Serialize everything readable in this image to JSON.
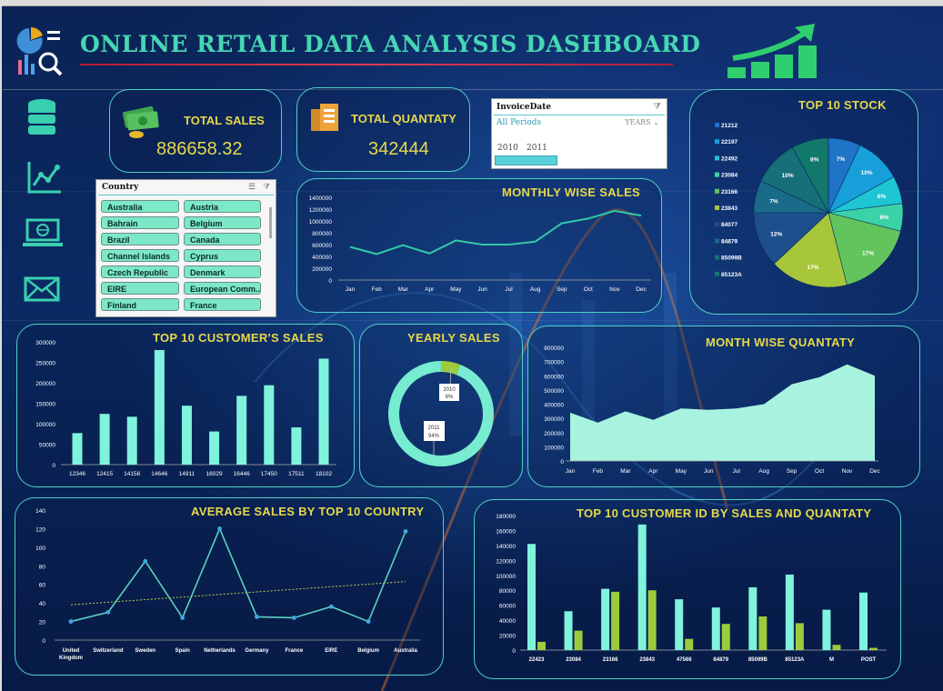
{
  "title": "ONLINE RETAIL DATA ANALYSIS DASHBOARD",
  "kpis": {
    "sales_label": "TOTAL SALES",
    "sales_value": "886658.32",
    "quantity_label": "TOTAL QUANTATY",
    "quantity_value": "342444"
  },
  "invoice_slicer": {
    "title": "InvoiceDate",
    "period": "All Periods",
    "level": "YEARS",
    "years": [
      "2010",
      "2011"
    ]
  },
  "country_slicer": {
    "title": "Country",
    "items": [
      "Australia",
      "Austria",
      "Bahrain",
      "Belgium",
      "Brazil",
      "Canada",
      "Channel Islands",
      "Cyprus",
      "Czech Republic",
      "Denmark",
      "EIRE",
      "European Comm...",
      "Finland",
      "France"
    ]
  },
  "side_icons": [
    "database-icon",
    "line-chart-icon",
    "laptop-icon",
    "mail-icon"
  ],
  "colors": {
    "accent": "#4fd1c5",
    "title": "#e6d84a",
    "series": "#7ff3dc",
    "series2": "#9ccc3c"
  },
  "chart_data": [
    {
      "id": "monthly",
      "type": "line",
      "title": "MONTHLY WISE SALES",
      "categories": [
        "Jan",
        "Feb",
        "Mar",
        "Apr",
        "May",
        "Jun",
        "Jul",
        "Aug",
        "Sep",
        "Oct",
        "Nov",
        "Dec"
      ],
      "values": [
        560000,
        440000,
        590000,
        450000,
        670000,
        600000,
        600000,
        650000,
        960000,
        1040000,
        1170000,
        1090000
      ],
      "ylim": [
        0,
        1400000
      ],
      "yticks": [
        "0",
        "200000",
        "400000",
        "600000",
        "800000",
        "1000000",
        "1200000",
        "1400000"
      ],
      "legend": "none"
    },
    {
      "id": "stock",
      "type": "pie",
      "title": "TOP 10 STOCK",
      "labels": [
        "21212",
        "22197",
        "22492",
        "23084",
        "23166",
        "23843",
        "84077",
        "84879",
        "85099B",
        "85123A"
      ],
      "values": [
        7,
        10,
        6,
        6,
        17,
        17,
        12,
        7,
        10,
        8
      ],
      "slice_labels": [
        "7%",
        "10%",
        "6%",
        "6%",
        "17%",
        "17%",
        "12%",
        "7%",
        "10%",
        "8%"
      ],
      "colors": [
        "#1f74c8",
        "#169fd8",
        "#1ec5d4",
        "#3bd2a8",
        "#62c45d",
        "#a7c63a",
        "#1d4f8c",
        "#1a6a8a",
        "#176f79",
        "#11786a"
      ],
      "legend": "left"
    },
    {
      "id": "customers",
      "type": "bar",
      "title": "TOP 10 CUSTOMER'S  SALES",
      "categories": [
        "12346",
        "12415",
        "14156",
        "14646",
        "14911",
        "16029",
        "16446",
        "17450",
        "17511",
        "18102"
      ],
      "values": [
        77000,
        124000,
        117000,
        280000,
        144000,
        81000,
        168000,
        194000,
        91000,
        259000
      ],
      "ylim": [
        0,
        300000
      ],
      "yticks": [
        "0",
        "50000",
        "100000",
        "150000",
        "200000",
        "250000",
        "300000"
      ]
    },
    {
      "id": "yearly",
      "type": "pie",
      "title": "YEARLY SALES",
      "labels": [
        "2010",
        "2011"
      ],
      "values": [
        6,
        94
      ],
      "slice_labels": [
        "2010\n6%",
        "2011\n94%"
      ]
    },
    {
      "id": "monthqty",
      "type": "area",
      "title": "MONTH WISE QUANTATY",
      "categories": [
        "Jan",
        "Feb",
        "Mar",
        "Apr",
        "May",
        "Jun",
        "Jul",
        "Aug",
        "Sep",
        "Oct",
        "Nov",
        "Dec"
      ],
      "values": [
        340000,
        270000,
        350000,
        290000,
        370000,
        360000,
        370000,
        400000,
        540000,
        590000,
        680000,
        600000
      ],
      "ylim": [
        0,
        800000
      ],
      "yticks": [
        "0",
        "100000",
        "200000",
        "300000",
        "400000",
        "500000",
        "600000",
        "700000",
        "800000"
      ]
    },
    {
      "id": "country",
      "type": "line",
      "title": "AVERAGE SALES BY TOP 10 COUNTRY",
      "categories": [
        "United Kingdom",
        "Switzerland",
        "Sweden",
        "Spain",
        "Netherlands",
        "Germany",
        "France",
        "EIRE",
        "Belgium",
        "Australia"
      ],
      "values": [
        20,
        30,
        85,
        24,
        120,
        25,
        24,
        36,
        20,
        117
      ],
      "ylim": [
        0,
        140
      ],
      "yticks": [
        "0",
        "20",
        "40",
        "60",
        "80",
        "100",
        "120",
        "140"
      ],
      "trendline": [
        38,
        63
      ]
    },
    {
      "id": "custqty",
      "type": "bar",
      "title": "TOP 10 CUSTOMER ID BY  SALES AND QUANTATY",
      "categories": [
        "22423",
        "23084",
        "23166",
        "23843",
        "47566",
        "84879",
        "85099B",
        "85123A",
        "M",
        "POST"
      ],
      "series": [
        {
          "values": [
            142000,
            52000,
            82000,
            168000,
            68000,
            57000,
            84000,
            101000,
            54000,
            77000
          ]
        },
        {
          "values": [
            11000,
            26000,
            78000,
            80000,
            15000,
            35000,
            45000,
            36000,
            7000,
            3000
          ]
        }
      ],
      "ylim": [
        0,
        180000
      ],
      "yticks": [
        "0",
        "20000",
        "40000",
        "60000",
        "80000",
        "100000",
        "120000",
        "140000",
        "160000",
        "180000"
      ]
    }
  ]
}
